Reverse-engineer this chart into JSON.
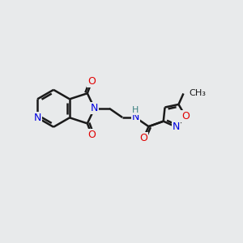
{
  "background_color": "#e8eaeb",
  "bond_color": "#1a1a1a",
  "bond_width": 1.8,
  "atom_colors": {
    "C": "#1a1a1a",
    "N": "#0000e0",
    "O": "#e00000",
    "H": "#3a8080",
    "CH3": "#1a1a1a"
  },
  "font_size": 9.0
}
